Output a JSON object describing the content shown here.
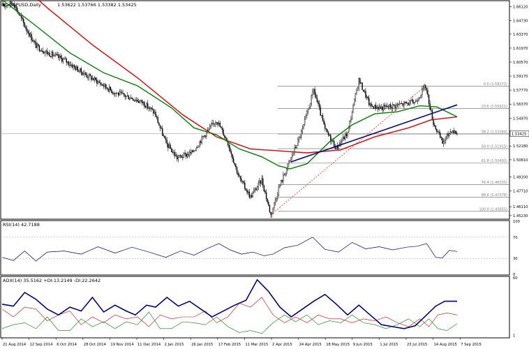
{
  "chart_data": [
    {
      "type": "candlestick",
      "title": "GBPUSD,Daily",
      "ohlc_label": "1.53622 1.53766 1.53382 1.53425",
      "current_price": 1.53425,
      "current_price_label": "1.53425",
      "ylim": [
        1.4501,
        1.665
      ],
      "y_ticks": [
        "1.66120",
        "1.64730",
        "1.63370",
        "1.61970",
        "1.60570",
        "1.59170",
        "1.57770",
        "1.56370",
        "1.54970",
        "1.53570",
        "1.52180",
        "1.50810",
        "1.49100",
        "1.47710",
        "1.46110",
        "1.45230"
      ],
      "y_tick_values": [
        1.6612,
        1.6473,
        1.6337,
        1.6197,
        1.6057,
        1.5917,
        1.5777,
        1.5637,
        1.5497,
        1.5357,
        1.5218,
        1.5081,
        1.491,
        1.4771,
        1.4611,
        1.4523
      ],
      "x_ticks": [
        "21 Aug 2014",
        "12 Sep 2014",
        "6 Oct 2014",
        "28 Oct 2014",
        "19 Nov 2014",
        "11 Dec 2014",
        "2 Jan 2015",
        "26 Jan 2015",
        "17 Feb 2015",
        "11 Mar 2015",
        "2 Apr 2015",
        "24 Apr 2015",
        "18 May 2015",
        "9 Jun 2015",
        "1 Jul 2015",
        "23 Jul 2015",
        "14 Aug 2015",
        "7 Sep 2015"
      ],
      "price_path": [
        [
          0,
          1.662
        ],
        [
          10,
          1.665
        ],
        [
          20,
          1.642
        ],
        [
          30,
          1.622
        ],
        [
          40,
          1.615
        ],
        [
          55,
          1.608
        ],
        [
          70,
          1.596
        ],
        [
          85,
          1.586
        ],
        [
          100,
          1.575
        ],
        [
          115,
          1.57
        ],
        [
          125,
          1.565
        ],
        [
          135,
          1.555
        ],
        [
          145,
          1.525
        ],
        [
          155,
          1.51
        ],
        [
          168,
          1.515
        ],
        [
          180,
          1.534
        ],
        [
          190,
          1.548
        ],
        [
          200,
          1.525
        ],
        [
          210,
          1.49
        ],
        [
          220,
          1.471
        ],
        [
          230,
          1.488
        ],
        [
          238,
          1.453
        ],
        [
          246,
          1.483
        ],
        [
          256,
          1.51
        ],
        [
          266,
          1.538
        ],
        [
          276,
          1.578
        ],
        [
          286,
          1.538
        ],
        [
          296,
          1.52
        ],
        [
          306,
          1.535
        ],
        [
          316,
          1.588
        ],
        [
          326,
          1.562
        ],
        [
          336,
          1.56
        ],
        [
          346,
          1.562
        ],
        [
          356,
          1.564
        ],
        [
          366,
          1.566
        ],
        [
          375,
          1.582
        ],
        [
          382,
          1.545
        ],
        [
          390,
          1.525
        ],
        [
          398,
          1.538
        ],
        [
          403,
          1.5343
        ]
      ],
      "overlays": [
        {
          "type": "sma",
          "color": "#e00000",
          "path": [
            [
              0,
              1.7
            ],
            [
              40,
              1.66
            ],
            [
              80,
              1.623
            ],
            [
              120,
              1.59
            ],
            [
              160,
              1.553
            ],
            [
              190,
              1.531
            ],
            [
              220,
              1.519
            ],
            [
              245,
              1.517
            ],
            [
              270,
              1.515
            ],
            [
              300,
              1.518
            ],
            [
              330,
              1.531
            ],
            [
              360,
              1.54
            ],
            [
              380,
              1.548
            ],
            [
              403,
              1.551
            ]
          ]
        },
        {
          "type": "sma",
          "color": "#008000",
          "path": [
            [
              0,
              1.668
            ],
            [
              30,
              1.642
            ],
            [
              60,
              1.615
            ],
            [
              90,
              1.595
            ],
            [
              120,
              1.582
            ],
            [
              150,
              1.56
            ],
            [
              170,
              1.54
            ],
            [
              190,
              1.533
            ],
            [
              210,
              1.519
            ],
            [
              230,
              1.511
            ],
            [
              245,
              1.502
            ],
            [
              255,
              1.499
            ],
            [
              270,
              1.504
            ],
            [
              290,
              1.526
            ],
            [
              310,
              1.543
            ],
            [
              330,
              1.554
            ],
            [
              350,
              1.556
            ],
            [
              370,
              1.562
            ],
            [
              385,
              1.561
            ],
            [
              403,
              1.551
            ]
          ]
        }
      ],
      "trendlines": [
        {
          "color": "#000080",
          "from": [
            256,
            1.506
          ],
          "to": [
            403,
            1.563
          ]
        },
        {
          "color": "#ff0000",
          "style": "dotted",
          "from": [
            238,
            1.453
          ],
          "to": [
            375,
            1.582
          ]
        }
      ],
      "fibonacci": [
        {
          "label": "0.0 (1.58172)",
          "value": 1.58172
        },
        {
          "label": "23.6 (1.55921)",
          "value": 1.55921
        },
        {
          "label": "38.2 (1.53384)",
          "value": 1.53384
        },
        {
          "label": "50.0 (1.51915)",
          "value": 1.51915
        },
        {
          "label": "61.8 (1.50492)",
          "value": 1.50492
        },
        {
          "label": "76.4 (1.48335)",
          "value": 1.48335
        },
        {
          "label": "88.6 (1.47078)",
          "value": 1.47078
        },
        {
          "label": "100.0 (1.45655)",
          "value": 1.45655
        }
      ]
    },
    {
      "type": "line",
      "title": "RSI(14) 42.7188",
      "ylim": [
        0,
        100
      ],
      "y_ticks": [
        "100",
        "70",
        "30",
        "0"
      ],
      "y_tick_values": [
        100,
        70,
        30,
        0
      ],
      "levels": [
        70,
        30
      ],
      "series": [
        {
          "color": "#000080",
          "values": [
            [
              0,
              32
            ],
            [
              10,
              26
            ],
            [
              20,
              44
            ],
            [
              30,
              25
            ],
            [
              40,
              42
            ],
            [
              55,
              44
            ],
            [
              70,
              38
            ],
            [
              85,
              52
            ],
            [
              100,
              40
            ],
            [
              115,
              51
            ],
            [
              130,
              42
            ],
            [
              145,
              32
            ],
            [
              158,
              44
            ],
            [
              170,
              36
            ],
            [
              182,
              49
            ],
            [
              192,
              58
            ],
            [
              202,
              46
            ],
            [
              212,
              38
            ],
            [
              222,
              42
            ],
            [
              232,
              35
            ],
            [
              240,
              38
            ],
            [
              250,
              50
            ],
            [
              262,
              55
            ],
            [
              275,
              70
            ],
            [
              286,
              47
            ],
            [
              298,
              42
            ],
            [
              310,
              60
            ],
            [
              322,
              48
            ],
            [
              334,
              52
            ],
            [
              346,
              46
            ],
            [
              358,
              51
            ],
            [
              368,
              53
            ],
            [
              376,
              58
            ],
            [
              384,
              32
            ],
            [
              390,
              31
            ],
            [
              396,
              45
            ],
            [
              403,
              43
            ]
          ]
        }
      ]
    },
    {
      "type": "line",
      "title": "ADX(14) 35.5162 +DI:13.2149 -DI:22.2642",
      "ylim": [
        0,
        60
      ],
      "y_ticks": [
        "60",
        "1"
      ],
      "y_tick_values": [
        60,
        1
      ],
      "series": [
        {
          "name": "ADX",
          "color": "#000080",
          "values": [
            [
              0,
              33
            ],
            [
              10,
              31
            ],
            [
              20,
              45
            ],
            [
              30,
              38
            ],
            [
              40,
              28
            ],
            [
              50,
              22
            ],
            [
              60,
              30
            ],
            [
              70,
              26
            ],
            [
              80,
              40
            ],
            [
              90,
              25
            ],
            [
              100,
              32
            ],
            [
              110,
              26
            ],
            [
              118,
              22
            ],
            [
              128,
              32
            ],
            [
              136,
              30
            ],
            [
              146,
              40
            ],
            [
              156,
              31
            ],
            [
              166,
              36
            ],
            [
              176,
              28
            ],
            [
              186,
              20
            ],
            [
              196,
              26
            ],
            [
              206,
              32
            ],
            [
              216,
              37
            ],
            [
              226,
              58
            ],
            [
              236,
              46
            ],
            [
              246,
              30
            ],
            [
              256,
              20
            ],
            [
              266,
              28
            ],
            [
              276,
              36
            ],
            [
              286,
              43
            ],
            [
              296,
              33
            ],
            [
              306,
              22
            ],
            [
              316,
              32
            ],
            [
              326,
              22
            ],
            [
              336,
              12
            ],
            [
              346,
              10
            ],
            [
              356,
              8
            ],
            [
              366,
              11
            ],
            [
              376,
              22
            ],
            [
              384,
              31
            ],
            [
              392,
              36
            ],
            [
              403,
              36
            ]
          ]
        },
        {
          "name": "+DI",
          "color": "#008000",
          "values": [
            [
              0,
              8
            ],
            [
              10,
              12
            ],
            [
              20,
              14
            ],
            [
              30,
              8
            ],
            [
              40,
              20
            ],
            [
              50,
              6
            ],
            [
              60,
              6
            ],
            [
              70,
              18
            ],
            [
              80,
              10
            ],
            [
              90,
              15
            ],
            [
              100,
              8
            ],
            [
              110,
              15
            ],
            [
              120,
              12
            ],
            [
              130,
              25
            ],
            [
              140,
              8
            ],
            [
              150,
              8
            ],
            [
              160,
              15
            ],
            [
              170,
              14
            ],
            [
              180,
              12
            ],
            [
              190,
              20
            ],
            [
              200,
              10
            ],
            [
              210,
              4
            ],
            [
              220,
              6
            ],
            [
              230,
              3
            ],
            [
              240,
              14
            ],
            [
              250,
              22
            ],
            [
              260,
              15
            ],
            [
              270,
              22
            ],
            [
              280,
              12
            ],
            [
              290,
              16
            ],
            [
              300,
              14
            ],
            [
              310,
              22
            ],
            [
              320,
              14
            ],
            [
              330,
              12
            ],
            [
              340,
              8
            ],
            [
              350,
              12
            ],
            [
              360,
              18
            ],
            [
              370,
              10
            ],
            [
              378,
              18
            ],
            [
              386,
              8
            ],
            [
              394,
              6
            ],
            [
              403,
              13
            ]
          ]
        },
        {
          "name": "-DI",
          "color": "#e00000",
          "values": [
            [
              0,
              28
            ],
            [
              10,
              20
            ],
            [
              20,
              30
            ],
            [
              30,
              28
            ],
            [
              40,
              16
            ],
            [
              50,
              22
            ],
            [
              60,
              26
            ],
            [
              70,
              12
            ],
            [
              80,
              20
            ],
            [
              90,
              14
            ],
            [
              100,
              22
            ],
            [
              110,
              18
            ],
            [
              120,
              20
            ],
            [
              130,
              10
            ],
            [
              140,
              22
            ],
            [
              150,
              18
            ],
            [
              160,
              20
            ],
            [
              170,
              20
            ],
            [
              180,
              26
            ],
            [
              190,
              14
            ],
            [
              200,
              20
            ],
            [
              210,
              34
            ],
            [
              220,
              30
            ],
            [
              230,
              40
            ],
            [
              240,
              22
            ],
            [
              250,
              14
            ],
            [
              260,
              20
            ],
            [
              270,
              14
            ],
            [
              280,
              22
            ],
            [
              290,
              18
            ],
            [
              300,
              18
            ],
            [
              310,
              14
            ],
            [
              320,
              18
            ],
            [
              330,
              16
            ],
            [
              340,
              20
            ],
            [
              350,
              14
            ],
            [
              360,
              10
            ],
            [
              370,
              18
            ],
            [
              378,
              10
            ],
            [
              386,
              22
            ],
            [
              394,
              24
            ],
            [
              403,
              22
            ]
          ]
        }
      ]
    }
  ]
}
